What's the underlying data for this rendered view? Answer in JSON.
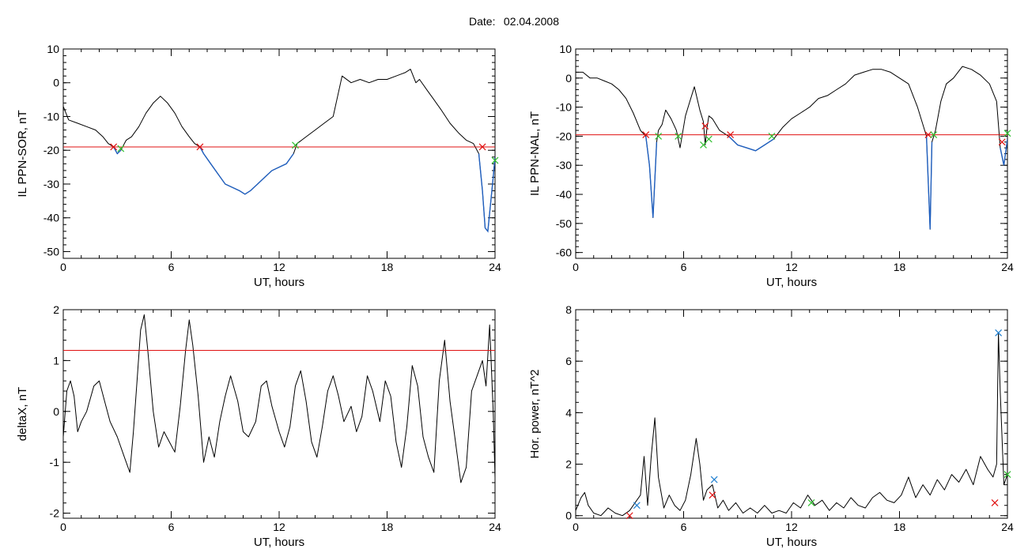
{
  "page": {
    "date_label": "Date:",
    "date_value": "02.04.2008"
  },
  "colors": {
    "trace": "#000000",
    "below_threshold": "#1f5fbf",
    "threshold_line": "#e01010",
    "marker_red": "#e01010",
    "marker_green": "#30c030",
    "marker_blue": "#1f7fd0"
  },
  "chart_data": [
    {
      "id": "sor",
      "type": "line",
      "ylabel": "IL PPN-SOR, nT",
      "xlabel": "UT, hours",
      "xlim": [
        0,
        24
      ],
      "ylim": [
        -52,
        10
      ],
      "xticks": [
        0,
        6,
        12,
        18,
        24
      ],
      "yticks": [
        10,
        0,
        -10,
        -20,
        -30,
        -40,
        -50
      ],
      "minor_x_step": 1,
      "minor_y_step": 2,
      "threshold": -19,
      "series": [
        {
          "x": [
            0,
            0.3,
            0.8,
            1.3,
            1.8,
            2.2,
            2.5,
            2.8,
            3.0,
            3.2,
            3.5,
            3.8,
            4.2,
            4.6,
            5.0,
            5.4,
            5.8,
            6.2,
            6.6,
            7.0,
            7.3,
            7.6,
            7.8,
            8.2,
            8.6,
            9.0,
            9.4,
            9.8,
            10.1,
            10.4,
            10.8,
            11.2,
            11.6,
            12.0,
            12.4,
            12.8,
            13.0,
            13.5,
            14.0,
            14.5,
            15.0,
            15.5,
            16.0,
            16.5,
            17.0,
            17.5,
            18.0,
            18.5,
            19.0,
            19.3,
            19.6,
            19.8,
            20.2,
            20.6,
            21.0,
            21.5,
            22.0,
            22.4,
            22.8,
            23.1,
            23.3,
            23.45,
            23.6,
            23.75,
            23.9,
            24.0
          ],
          "y": [
            -7,
            -11,
            -12,
            -13,
            -14,
            -16,
            -18,
            -19,
            -21,
            -20,
            -17,
            -16,
            -13,
            -9,
            -6,
            -4,
            -6,
            -9,
            -13,
            -16,
            -18,
            -19,
            -21,
            -24,
            -27,
            -30,
            -31,
            -32,
            -33,
            -32,
            -30,
            -28,
            -26,
            -25,
            -24,
            -21,
            -18,
            -16,
            -14,
            -12,
            -10,
            2,
            0,
            1,
            0,
            1,
            1,
            2,
            3,
            4,
            0,
            1,
            -2,
            -5,
            -8,
            -12,
            -15,
            -17,
            -18,
            -21,
            -32,
            -43,
            -44,
            -36,
            -28,
            -22
          ]
        }
      ],
      "markers_red": [
        [
          2.8,
          -19
        ],
        [
          7.6,
          -19
        ],
        [
          23.3,
          -19
        ]
      ],
      "markers_green": [
        [
          3.2,
          -19.5
        ],
        [
          12.9,
          -18.5
        ],
        [
          24.0,
          -23
        ]
      ]
    },
    {
      "id": "nal",
      "type": "line",
      "ylabel": "IL PPN-NAL, nT",
      "xlabel": "UT, hours",
      "xlim": [
        0,
        24
      ],
      "ylim": [
        -62,
        10
      ],
      "xticks": [
        0,
        6,
        12,
        18,
        24
      ],
      "yticks": [
        10,
        0,
        -10,
        -20,
        -30,
        -40,
        -50,
        -60
      ],
      "minor_x_step": 1,
      "minor_y_step": 2,
      "threshold": -19.5,
      "series": [
        {
          "x": [
            0,
            0.4,
            0.8,
            1.2,
            1.6,
            2.0,
            2.4,
            2.8,
            3.2,
            3.6,
            3.9,
            4.1,
            4.3,
            4.5,
            4.6,
            4.8,
            5.0,
            5.3,
            5.6,
            5.8,
            6.1,
            6.3,
            6.6,
            6.9,
            7.1,
            7.2,
            7.3,
            7.4,
            7.6,
            8.0,
            8.5,
            9.0,
            9.5,
            10.0,
            10.5,
            11.0,
            11.5,
            12.0,
            12.5,
            13.0,
            13.5,
            14.0,
            14.5,
            15.0,
            15.5,
            16.0,
            16.5,
            17.0,
            17.5,
            18.0,
            18.5,
            19.0,
            19.5,
            19.7,
            19.8,
            20.0,
            20.3,
            20.6,
            21.0,
            21.5,
            22.0,
            22.5,
            23.0,
            23.4,
            23.6,
            23.8,
            24.0
          ],
          "y": [
            2,
            2,
            0,
            0,
            -1,
            -2,
            -4,
            -7,
            -12,
            -18,
            -20,
            -30,
            -48,
            -22,
            -18,
            -16,
            -11,
            -14,
            -18,
            -24,
            -13,
            -9,
            -3,
            -11,
            -15,
            -23,
            -17,
            -13,
            -14,
            -18,
            -20,
            -23,
            -24,
            -25,
            -23,
            -21,
            -17,
            -14,
            -12,
            -10,
            -7,
            -6,
            -4,
            -2,
            1,
            2,
            3,
            3,
            2,
            0,
            -2,
            -10,
            -20,
            -52,
            -22,
            -18,
            -8,
            -2,
            0,
            4,
            3,
            1,
            -2,
            -8,
            -24,
            -30,
            -21
          ]
        }
      ],
      "markers_red": [
        [
          3.9,
          -19.5
        ],
        [
          7.2,
          -16.5
        ],
        [
          8.6,
          -19.5
        ],
        [
          19.6,
          -19.5
        ],
        [
          23.7,
          -22
        ]
      ],
      "markers_green": [
        [
          4.6,
          -20
        ],
        [
          5.7,
          -20
        ],
        [
          7.1,
          -23
        ],
        [
          7.4,
          -21
        ],
        [
          10.9,
          -20
        ],
        [
          19.9,
          -19.5
        ],
        [
          24.0,
          -19
        ]
      ]
    },
    {
      "id": "deltax",
      "type": "line",
      "ylabel": "deltaX, nT",
      "xlabel": "UT, hours",
      "xlim": [
        0,
        24
      ],
      "ylim": [
        -2.1,
        2.0
      ],
      "xticks": [
        0,
        6,
        12,
        18,
        24
      ],
      "yticks": [
        2,
        1,
        0,
        -1,
        -2
      ],
      "minor_x_step": 1,
      "minor_y_step": 0.2,
      "threshold": 1.2,
      "series": [
        {
          "x": [
            0,
            0.2,
            0.4,
            0.6,
            0.8,
            1.0,
            1.3,
            1.7,
            2.0,
            2.3,
            2.6,
            3.0,
            3.4,
            3.7,
            3.9,
            4.1,
            4.3,
            4.5,
            4.7,
            5.0,
            5.3,
            5.6,
            5.9,
            6.2,
            6.5,
            6.8,
            7.0,
            7.2,
            7.5,
            7.8,
            8.1,
            8.4,
            8.7,
            9.0,
            9.3,
            9.7,
            10.0,
            10.3,
            10.7,
            11.0,
            11.3,
            11.6,
            12.0,
            12.3,
            12.6,
            12.9,
            13.2,
            13.5,
            13.8,
            14.1,
            14.4,
            14.7,
            15.0,
            15.3,
            15.6,
            16.0,
            16.3,
            16.6,
            16.9,
            17.2,
            17.6,
            17.9,
            18.2,
            18.5,
            18.8,
            19.1,
            19.4,
            19.7,
            20.0,
            20.3,
            20.6,
            20.9,
            21.2,
            21.5,
            21.8,
            22.1,
            22.4,
            22.7,
            23.0,
            23.3,
            23.5,
            23.7,
            23.9,
            24.0
          ],
          "y": [
            -0.5,
            0.4,
            0.6,
            0.3,
            -0.4,
            -0.2,
            0.0,
            0.5,
            0.6,
            0.2,
            -0.2,
            -0.5,
            -0.9,
            -1.2,
            -0.4,
            0.6,
            1.6,
            1.9,
            1.2,
            0.0,
            -0.7,
            -0.4,
            -0.6,
            -0.8,
            0.1,
            1.2,
            1.8,
            1.3,
            0.3,
            -1.0,
            -0.5,
            -0.9,
            -0.2,
            0.3,
            0.7,
            0.2,
            -0.4,
            -0.5,
            -0.2,
            0.5,
            0.6,
            0.1,
            -0.4,
            -0.7,
            -0.3,
            0.5,
            0.8,
            0.2,
            -0.6,
            -0.9,
            -0.3,
            0.4,
            0.7,
            0.3,
            -0.2,
            0.1,
            -0.4,
            -0.1,
            0.7,
            0.4,
            -0.2,
            0.6,
            0.3,
            -0.6,
            -1.1,
            -0.3,
            0.9,
            0.5,
            -0.5,
            -0.9,
            -1.2,
            0.6,
            1.4,
            0.2,
            -0.6,
            -1.4,
            -1.1,
            0.4,
            0.7,
            1.0,
            0.5,
            1.7,
            0.0,
            -1.3
          ]
        }
      ],
      "markers_red": [],
      "markers_green": []
    },
    {
      "id": "hpower",
      "type": "line",
      "ylabel": "Hor. power, nT^2",
      "xlabel": "UT, hours",
      "xlim": [
        0,
        24
      ],
      "ylim": [
        -0.1,
        8
      ],
      "xticks": [
        0,
        6,
        12,
        18,
        24
      ],
      "yticks": [
        8,
        6,
        4,
        2,
        0
      ],
      "minor_x_step": 1,
      "minor_y_step": 0.4,
      "threshold": null,
      "series": [
        {
          "x": [
            0,
            0.3,
            0.5,
            0.7,
            1.0,
            1.4,
            1.8,
            2.2,
            2.6,
            3.0,
            3.3,
            3.6,
            3.8,
            4.0,
            4.2,
            4.4,
            4.6,
            4.9,
            5.2,
            5.5,
            5.8,
            6.1,
            6.4,
            6.7,
            6.9,
            7.1,
            7.3,
            7.6,
            7.9,
            8.2,
            8.5,
            8.9,
            9.3,
            9.7,
            10.1,
            10.5,
            10.9,
            11.3,
            11.7,
            12.1,
            12.5,
            12.9,
            13.3,
            13.7,
            14.1,
            14.5,
            14.9,
            15.3,
            15.7,
            16.1,
            16.5,
            16.9,
            17.3,
            17.7,
            18.1,
            18.5,
            18.9,
            19.3,
            19.7,
            20.1,
            20.5,
            20.9,
            21.3,
            21.7,
            22.1,
            22.5,
            22.9,
            23.2,
            23.4,
            23.5,
            23.6,
            23.8,
            24.0
          ],
          "y": [
            0.2,
            0.7,
            0.9,
            0.4,
            0.1,
            0.0,
            0.3,
            0.1,
            0.0,
            0.2,
            0.5,
            0.8,
            2.3,
            0.4,
            2.3,
            3.8,
            1.5,
            0.3,
            0.8,
            0.4,
            0.2,
            0.6,
            1.6,
            3.0,
            2.0,
            0.6,
            1.0,
            1.2,
            0.3,
            0.6,
            0.2,
            0.5,
            0.1,
            0.3,
            0.1,
            0.4,
            0.1,
            0.2,
            0.1,
            0.5,
            0.3,
            0.8,
            0.4,
            0.6,
            0.2,
            0.5,
            0.3,
            0.7,
            0.4,
            0.3,
            0.7,
            0.9,
            0.6,
            0.5,
            0.8,
            1.5,
            0.7,
            1.2,
            0.8,
            1.4,
            1.0,
            1.6,
            1.3,
            1.8,
            1.2,
            2.3,
            1.8,
            1.5,
            2.0,
            7.1,
            4.8,
            1.2,
            1.6
          ]
        }
      ],
      "markers_red": [
        [
          3.0,
          0.0
        ],
        [
          7.6,
          0.8
        ],
        [
          23.3,
          0.5
        ]
      ],
      "markers_green": [
        [
          13.1,
          0.5
        ],
        [
          24.0,
          1.6
        ]
      ],
      "markers_blue": [
        [
          3.4,
          0.4
        ],
        [
          7.7,
          1.4
        ],
        [
          23.5,
          7.1
        ]
      ]
    }
  ]
}
